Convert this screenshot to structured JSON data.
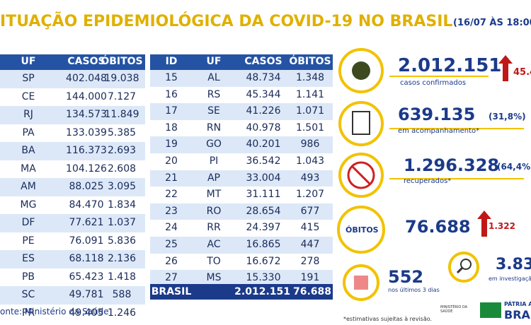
{
  "header": {
    "title": "ITUAÇÃO EPIDEMIOLÓGICA DA COVID-19 NO BRASIL",
    "date": "(16/07 ÀS 18:00"
  },
  "table_left": {
    "columns": [
      "UF",
      "CASOS",
      "ÓBITOS"
    ],
    "rows": [
      [
        "SP",
        "402.048",
        "19.038"
      ],
      [
        "CE",
        "144.000",
        "7.127"
      ],
      [
        "RJ",
        "134.573",
        "11.849"
      ],
      [
        "PA",
        "133.039",
        "5.385"
      ],
      [
        "BA",
        "116.373",
        "2.693"
      ],
      [
        "MA",
        "104.126",
        "2.608"
      ],
      [
        "AM",
        "88.025",
        "3.095"
      ],
      [
        "MG",
        "84.470",
        "1.834"
      ],
      [
        "DF",
        "77.621",
        "1.037"
      ],
      [
        "PE",
        "76.091",
        "5.836"
      ],
      [
        "ES",
        "68.118",
        "2.136"
      ],
      [
        "PB",
        "65.423",
        "1.418"
      ],
      [
        "SC",
        "49.781",
        "588"
      ],
      [
        "PR",
        "49.405",
        "1.246"
      ]
    ]
  },
  "table_right": {
    "columns": [
      "ID",
      "UF",
      "CASOS",
      "ÓBITOS"
    ],
    "rows": [
      [
        "15",
        "AL",
        "48.734",
        "1.348"
      ],
      [
        "16",
        "RS",
        "45.344",
        "1.141"
      ],
      [
        "17",
        "SE",
        "41.226",
        "1.071"
      ],
      [
        "18",
        "RN",
        "40.978",
        "1.501"
      ],
      [
        "19",
        "GO",
        "40.201",
        "986"
      ],
      [
        "20",
        "PI",
        "36.542",
        "1.043"
      ],
      [
        "21",
        "AP",
        "33.004",
        "493"
      ],
      [
        "22",
        "MT",
        "31.111",
        "1.207"
      ],
      [
        "23",
        "RO",
        "28.654",
        "677"
      ],
      [
        "24",
        "RR",
        "24.397",
        "415"
      ],
      [
        "25",
        "AC",
        "16.865",
        "447"
      ],
      [
        "26",
        "TO",
        "16.672",
        "278"
      ],
      [
        "27",
        "MS",
        "15.330",
        "191"
      ]
    ],
    "total": [
      "BRASIL",
      "2.012.151",
      "76.688"
    ]
  },
  "stats": {
    "confirmed": {
      "value": "2.012.151",
      "label": "casos confirmados",
      "change": "45.4"
    },
    "monitoring": {
      "value": "639.135",
      "percent": "(31,8%)",
      "label": "em acompanhamento*"
    },
    "recovered": {
      "value": "1.296.328",
      "percent": "(64,4%",
      "label": "recuperados*"
    },
    "deaths": {
      "badge": "ÓBITOS",
      "value": "76.688",
      "change": "1.322"
    },
    "recent": {
      "value": "552",
      "label": "nos últimos 3 dias"
    },
    "investigation": {
      "value": "3.83",
      "label": "em investigaçã"
    }
  },
  "footer": {
    "source": "onte: Ministério da Saúde",
    "note": "*estimativas sujeitas à revisão.",
    "ministry": "MINISTÉRIO DA SAÚDE",
    "brand_top": "PÁTRIA AM",
    "brand": "BRAS"
  }
}
